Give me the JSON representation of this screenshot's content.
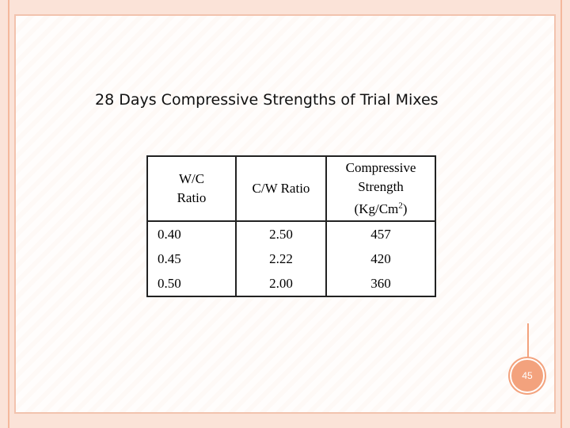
{
  "slide": {
    "title": "28 Days Compressive Strengths of Trial Mixes",
    "page_number": "45"
  },
  "table": {
    "headers": [
      [
        "W/C",
        "Ratio"
      ],
      [
        "C/W Ratio"
      ],
      [
        "Compressive",
        "Strength",
        "(Kg/Cm",
        "2",
        ")"
      ]
    ],
    "rows": [
      [
        "0.40",
        "2.50",
        "457"
      ],
      [
        "0.45",
        "2.22",
        "420"
      ],
      [
        "0.50",
        "2.00",
        "360"
      ]
    ]
  },
  "colors": {
    "accent": "#f3a27d",
    "border": "#fbe3d8"
  }
}
